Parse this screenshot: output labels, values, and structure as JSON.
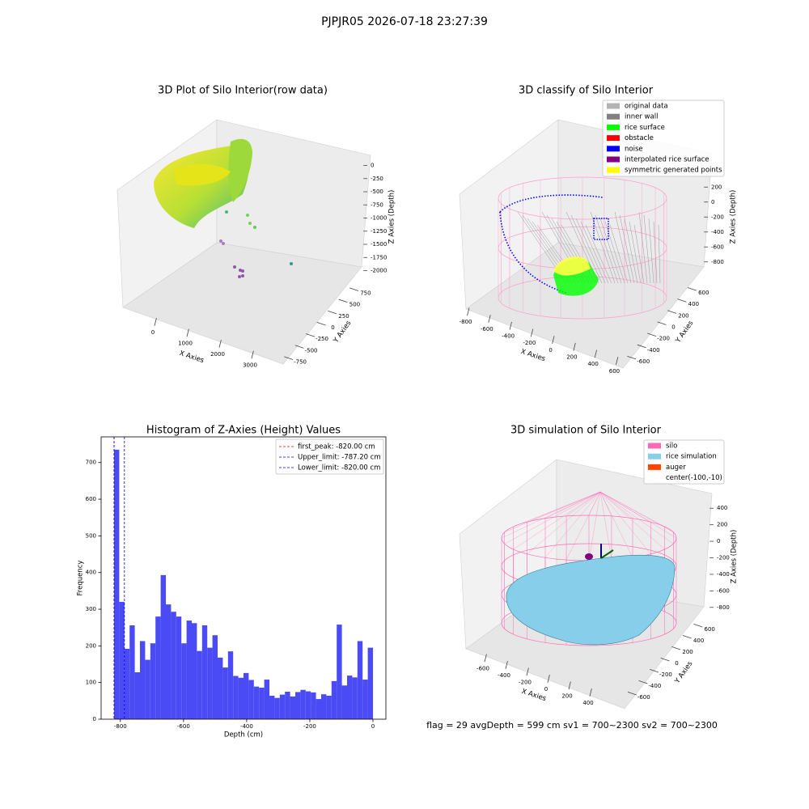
{
  "title": "PJPJR05 2026-07-18 23:27:39",
  "footer": "flag = 29  avgDepth = 599 cm  sv1 = 700~2300  sv2 = 700~2300",
  "chart_data": [
    {
      "type": "scatter3d",
      "title": "3D Plot of Silo Interior(row data)",
      "xlabel": "X Axies",
      "ylabel": "Y Axies",
      "zlabel": "Z Axies (Depth)",
      "xlim": [
        -500,
        3500
      ],
      "xticks": [
        0,
        1000,
        2000,
        3000
      ],
      "ylim": [
        -900,
        900
      ],
      "yticks": [
        -750,
        -500,
        -250,
        0,
        250,
        500,
        750
      ],
      "zlim": [
        -2100,
        100
      ],
      "zticks": [
        -2000,
        -1750,
        -1500,
        -1250,
        -1000,
        -750,
        -500,
        -250,
        0
      ]
    },
    {
      "type": "classify3d",
      "title": "3D classify of Silo Interior",
      "xlabel": "X Axies",
      "ylabel": "Y Axies",
      "zlabel": "Z Axies (Depth)",
      "xlim": [
        -850,
        650
      ],
      "xticks": [
        -800,
        -600,
        -400,
        -200,
        0,
        200,
        400,
        600
      ],
      "ylim": [
        -700,
        700
      ],
      "yticks": [
        -600,
        -400,
        -200,
        0,
        200,
        400,
        600
      ],
      "zlim": [
        -900,
        300
      ],
      "zticks": [
        -800,
        -600,
        -400,
        -200,
        0,
        200
      ],
      "legend": {
        "items": [
          {
            "name": "original data",
            "color": "#b3b3b3"
          },
          {
            "name": "inner wall",
            "color": "#808080"
          },
          {
            "name": "rice surface",
            "color": "#00ff00"
          },
          {
            "name": "obstacle",
            "color": "#ff0000"
          },
          {
            "name": "noise",
            "color": "#0000ff"
          },
          {
            "name": "interpolated rice surface",
            "color": "#800080"
          },
          {
            "name": "symmetric generated points",
            "color": "#ffff00"
          }
        ]
      }
    },
    {
      "type": "histogram",
      "title": "Histogram of Z-Axies (Height) Values",
      "xlabel": "Depth (cm)",
      "ylabel": "Frequency",
      "color": "#4b4bf5",
      "bins": [
        -820,
        -803.6,
        -787.2,
        -770.8,
        -754.4,
        -738,
        -721.6,
        -705.2,
        -688.8,
        -672.4,
        -656,
        -639.6,
        -623.2,
        -606.8,
        -590.4,
        -574,
        -557.6,
        -541.2,
        -524.8,
        -508.4,
        -492,
        -475.6,
        -459.2,
        -442.8,
        -426.4,
        -410,
        -393.6,
        -377.2,
        -360.8,
        -344.4,
        -328,
        -311.6,
        -295.2,
        -278.8,
        -262.4,
        -246,
        -229.6,
        -213.2,
        -196.8,
        -180.4,
        -164,
        -147.6,
        -131.2,
        -114.8,
        -98.4,
        -82,
        -65.6,
        -49.2,
        -32.8,
        -16.4,
        0
      ],
      "counts": [
        735,
        320,
        192,
        256,
        128,
        213,
        162,
        207,
        280,
        393,
        313,
        293,
        280,
        207,
        269,
        262,
        186,
        256,
        195,
        229,
        168,
        141,
        185,
        118,
        113,
        126,
        107,
        89,
        86,
        108,
        64,
        58,
        67,
        75,
        62,
        74,
        80,
        76,
        73,
        55,
        68,
        64,
        104,
        258,
        92,
        119,
        114,
        213,
        108,
        195
      ],
      "xlim": [
        -861,
        41
      ],
      "xticks": [
        -800,
        -600,
        -400,
        -200,
        0
      ],
      "ylim": [
        0,
        770
      ],
      "yticks": [
        0,
        100,
        200,
        300,
        400,
        500,
        600,
        700
      ],
      "lines": [
        {
          "name": "first_peak: -820.00 cm",
          "value": -820,
          "color": "#ff0000"
        },
        {
          "name": "Upper_limit: -787.20 cm",
          "value": -787.2,
          "color": "#0000ff"
        },
        {
          "name": "Lower_limit: -820.00 cm",
          "value": -820,
          "color": "#0000ff"
        }
      ]
    },
    {
      "type": "surface3d",
      "title": "3D simulation of Silo Interior",
      "xlabel": "X Axies",
      "ylabel": "Y Axies",
      "zlabel": "Z Axies (Depth)",
      "xlim": [
        -700,
        500
      ],
      "xticks": [
        -600,
        -400,
        -200,
        0,
        200,
        400
      ],
      "ylim": [
        -700,
        700
      ],
      "yticks": [
        -600,
        -400,
        -200,
        0,
        200,
        400,
        600
      ],
      "zlim": [
        -900,
        500
      ],
      "zticks": [
        -800,
        -600,
        -400,
        -200,
        0,
        200,
        400
      ],
      "legend": {
        "items": [
          {
            "name": "silo",
            "color": "#ff69b4"
          },
          {
            "name": "rice simulation",
            "color": "#87ceeb"
          },
          {
            "name": "auger",
            "color": "#ff4500"
          },
          {
            "name": "center(-100,-10)"
          }
        ]
      }
    }
  ]
}
